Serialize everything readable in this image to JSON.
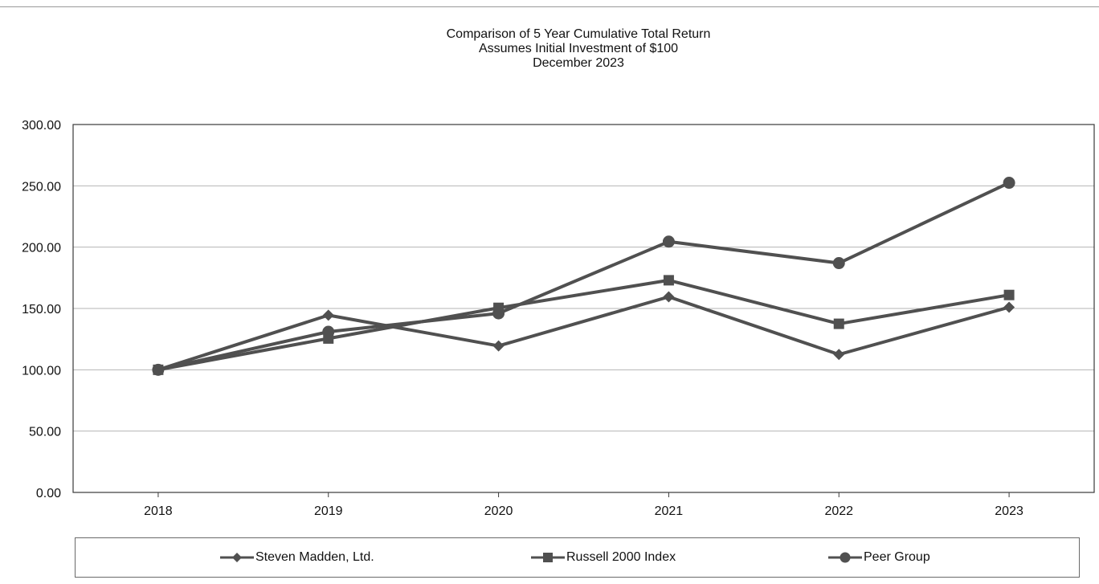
{
  "chart_data": {
    "type": "line",
    "title": "Comparison of 5 Year Cumulative Total Return",
    "subtitle": [
      "Assumes Initial Investment of $100",
      "December 2023"
    ],
    "xlabel": "",
    "ylabel": "",
    "categories": [
      "2018",
      "2019",
      "2020",
      "2021",
      "2022",
      "2023"
    ],
    "y_ticks": [
      "0.00",
      "50.00",
      "100.00",
      "150.00",
      "200.00",
      "250.00",
      "300.00"
    ],
    "ylim": [
      0,
      300
    ],
    "grid": true,
    "legend_position": "bottom",
    "series": [
      {
        "name": "Steven Madden, Ltd.",
        "marker": "diamond",
        "color": "#505050",
        "values": [
          100,
          144.5,
          119.5,
          159.5,
          112.5,
          151
        ]
      },
      {
        "name": "Russell 2000 Index",
        "marker": "square",
        "color": "#505050",
        "values": [
          100,
          125.5,
          150.5,
          173,
          137.5,
          161
        ]
      },
      {
        "name": "Peer Group",
        "marker": "circle",
        "color": "#505050",
        "values": [
          100,
          131,
          146,
          204.5,
          187,
          252.5
        ]
      }
    ]
  }
}
